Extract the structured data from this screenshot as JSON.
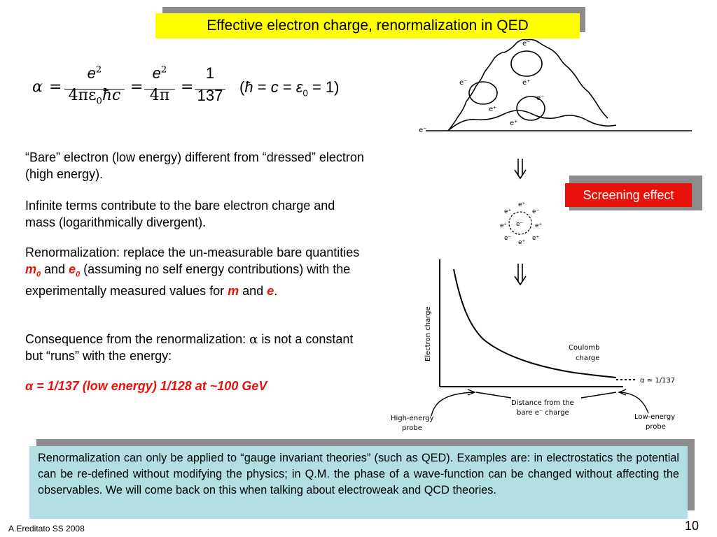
{
  "title": "Effective electron charge, renormalization in QED",
  "formula": {
    "alpha": "α",
    "eq": "=",
    "frac1_num": "e",
    "frac1_num_sup": "2",
    "frac1_den": "4πε",
    "frac1_den_sub": "0",
    "frac1_den_tail": "ħc",
    "frac2_num": "e",
    "frac2_num_sup": "2",
    "frac2_den": "4π",
    "frac3_num": "1",
    "frac3_den": "137",
    "note_open": "(",
    "note_hbar": "ħ",
    "note_eq1": "=",
    "note_c": "c",
    "note_eq2": "=",
    "note_eps": "ε",
    "note_eps_sub": "0",
    "note_eq3": "=",
    "note_one": "1)"
  },
  "paragraphs": {
    "p1": "“Bare” electron (low energy) different from “dressed” electron (high energy).",
    "p2": "Infinite terms contribute to the bare electron charge and mass (logarithmically divergent).",
    "p3_a": "Renormalization: replace the un-measurable bare quantities ",
    "p3_m0": "m",
    "p3_m0_sub": "0",
    "p3_and1": " and ",
    "p3_e0": "e",
    "p3_e0_sub": "0",
    "p3_b": " (assuming no self energy contributions) with the experimentally measured values for ",
    "p3_m": "m",
    "p3_and2": " and ",
    "p3_e": "e",
    "p3_end": ".",
    "p4_a": "Consequence from the renormalization: ",
    "p4_alpha": "α",
    "p4_b": " is not a constant but “runs” with the energy:",
    "p5": "α = 1/137 (low energy)  1/128 at ~100 GeV"
  },
  "screening": "Screening effect",
  "note": "Renormalization can only be applied to “gauge invariant theories” (such as QED). Examples are: in electrostatics the potential can be re-defined without modifying the physics; in Q.M. the phase of a wave-function can be changed without affecting the observables. We will come back on this when talking about electroweak and QCD theories.",
  "footer": "A.Ereditato SS 2008",
  "page_number": "10",
  "diagram": {
    "e_minus": "e⁻",
    "e_plus": "e⁺",
    "ylabel": "Electron charge",
    "coulomb": "Coulomb",
    "charge": "charge",
    "alpha_label": "α ≃ 1/137",
    "dist1": "Distance from the",
    "dist2": "bare e⁻ charge",
    "high1": "High-energy",
    "high2": "probe",
    "low1": "Low-energy",
    "low2": "probe"
  }
}
